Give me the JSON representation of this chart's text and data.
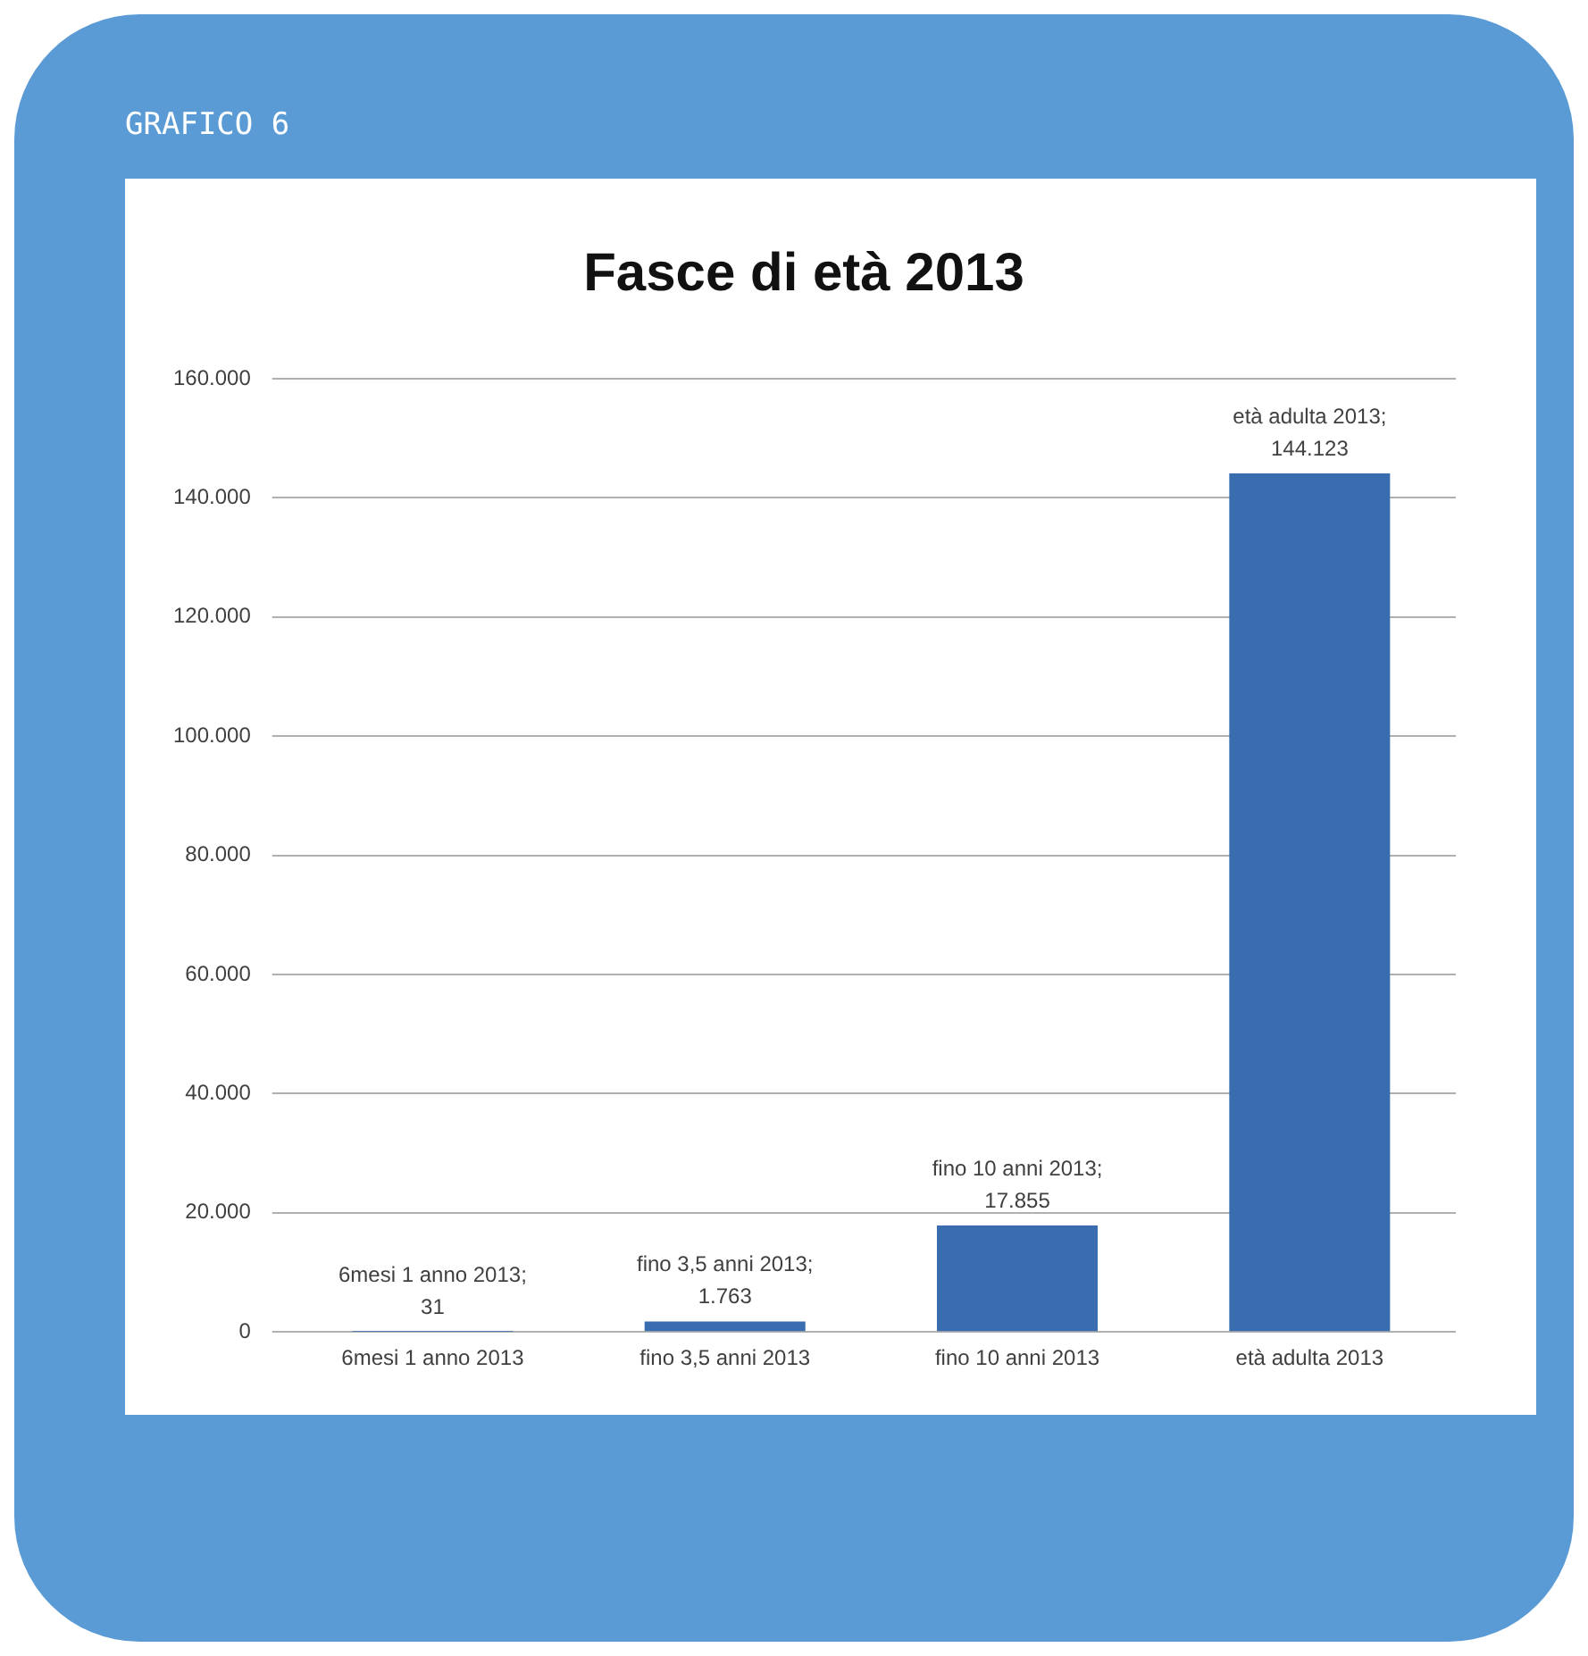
{
  "chart_data": {
    "type": "bar",
    "title": "Fasce di età 2013",
    "annotations": [
      "GRAFICO 6"
    ],
    "categories": [
      "6mesi 1 anno 2013",
      "fino 3,5 anni 2013",
      "fino 10 anni 2013",
      "età adulta 2013"
    ],
    "values": [
      31,
      1763,
      17855,
      144123
    ],
    "value_labels": [
      "6mesi 1 anno 2013;\n31",
      "fino 3,5 anni 2013;\n1.763",
      "fino 10 anni 2013;\n17.855",
      "età adulta 2013;\n144.123"
    ],
    "color": "#3a6cb0",
    "ylim": [
      0,
      160000
    ],
    "yticks": [
      {
        "value": 0,
        "label": "0"
      },
      {
        "value": 20000,
        "label": "20.000"
      },
      {
        "value": 40000,
        "label": "40.000"
      },
      {
        "value": 60000,
        "label": "60.000"
      },
      {
        "value": 80000,
        "label": "80.000"
      },
      {
        "value": 100000,
        "label": "100.000"
      },
      {
        "value": 120000,
        "label": "120.000"
      },
      {
        "value": 140000,
        "label": "140.000"
      },
      {
        "value": 160000,
        "label": "160.000"
      }
    ],
    "grid": "y",
    "legend": false
  }
}
